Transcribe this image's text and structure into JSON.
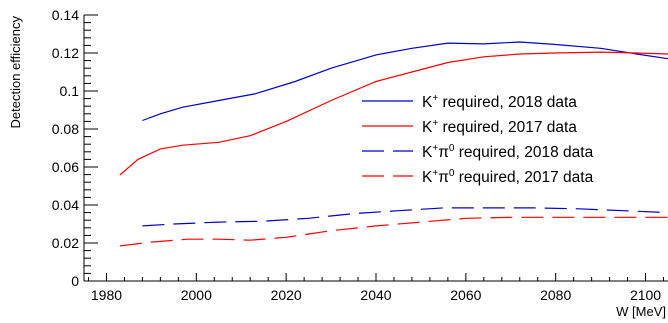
{
  "chart_data": {
    "type": "line",
    "xlabel": "W [MeV]",
    "ylabel": "Detection efficiency",
    "xlim": [
      1975,
      2105
    ],
    "ylim": [
      0,
      0.14
    ],
    "xticks": [
      "1980",
      "2000",
      "2020",
      "2040",
      "2060",
      "2080",
      "2100"
    ],
    "yticks": [
      "0",
      "0.02",
      "0.04",
      "0.06",
      "0.08",
      "0.1",
      "0.12",
      "0.14"
    ],
    "grid": false,
    "legend_position": "right",
    "series": [
      {
        "name_base": "K",
        "name_sup": "+",
        "name_mid": "",
        "name_sup2": "",
        "name_tail": " required, 2018 data",
        "color": "#0000cc",
        "dash": "solid",
        "x": [
          1988,
          1992,
          1997,
          2005,
          2013,
          2022,
          2030,
          2040,
          2048,
          2056,
          2064,
          2072,
          2080,
          2090,
          2098,
          2105
        ],
        "y": [
          0.0845,
          0.088,
          0.0915,
          0.095,
          0.0985,
          0.105,
          0.112,
          0.119,
          0.1225,
          0.1252,
          0.1248,
          0.1258,
          0.1245,
          0.1225,
          0.1195,
          0.117
        ]
      },
      {
        "name_base": "K",
        "name_sup": "+",
        "name_mid": "",
        "name_sup2": "",
        "name_tail": " required, 2017 data",
        "color": "#ff0000",
        "dash": "solid",
        "x": [
          1983,
          1987,
          1992,
          1997,
          2005,
          2012,
          2020,
          2030,
          2040,
          2048,
          2056,
          2064,
          2072,
          2080,
          2090,
          2098,
          2105
        ],
        "y": [
          0.0558,
          0.064,
          0.0695,
          0.0715,
          0.073,
          0.0765,
          0.084,
          0.095,
          0.105,
          0.11,
          0.115,
          0.118,
          0.1195,
          0.12,
          0.1205,
          0.12,
          0.1195
        ]
      },
      {
        "name_base": "K",
        "name_sup": "+",
        "name_mid": "π",
        "name_sup2": "0",
        "name_tail": " required, 2018 data",
        "color": "#0000cc",
        "dash": "dashed",
        "x": [
          1988,
          1995,
          2005,
          2015,
          2025,
          2035,
          2045,
          2055,
          2065,
          2075,
          2085,
          2095,
          2105
        ],
        "y": [
          0.029,
          0.03,
          0.031,
          0.0315,
          0.033,
          0.0355,
          0.037,
          0.0385,
          0.0385,
          0.0385,
          0.038,
          0.037,
          0.036
        ]
      },
      {
        "name_base": "K",
        "name_sup": "+",
        "name_mid": "π",
        "name_sup2": "0",
        "name_tail": " required, 2017 data",
        "color": "#ff0000",
        "dash": "dashed",
        "x": [
          1983,
          1990,
          1998,
          2005,
          2012,
          2020,
          2030,
          2040,
          2050,
          2060,
          2070,
          2080,
          2090,
          2100,
          2105
        ],
        "y": [
          0.0185,
          0.0205,
          0.022,
          0.022,
          0.0215,
          0.023,
          0.0265,
          0.029,
          0.031,
          0.033,
          0.0335,
          0.0335,
          0.0335,
          0.0335,
          0.0335
        ]
      }
    ]
  }
}
